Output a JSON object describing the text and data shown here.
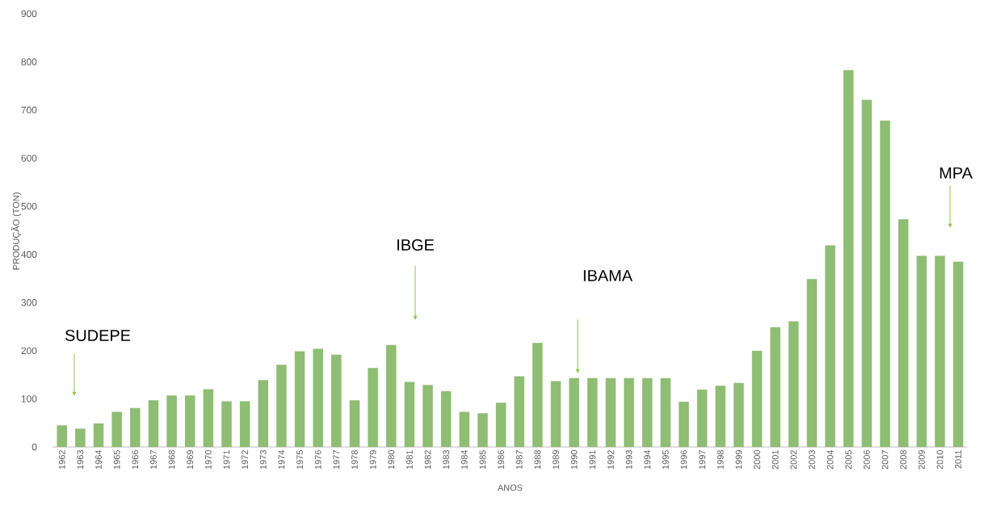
{
  "chart_data": {
    "type": "bar",
    "xlabel": "ANOS",
    "ylabel": "PRODUÇÃO (TON)",
    "color": "#8ebd73",
    "categories": [
      "1962",
      "1963",
      "1964",
      "1965",
      "1966",
      "1967",
      "1968",
      "1969",
      "1970",
      "1971",
      "1972",
      "1973",
      "1974",
      "1975",
      "1976",
      "1977",
      "1978",
      "1979",
      "1980",
      "1981",
      "1982",
      "1983",
      "1984",
      "1985",
      "1986",
      "1987",
      "1988",
      "1989",
      "1990",
      "1991",
      "1992",
      "1993",
      "1994",
      "1995",
      "1996",
      "1997",
      "1998",
      "1999",
      "2000",
      "2001",
      "2002",
      "2003",
      "2004",
      "2005",
      "2006",
      "2007",
      "2008",
      "2009",
      "2010",
      "2011"
    ],
    "values": [
      45,
      38,
      49,
      73,
      81,
      97,
      107,
      107,
      120,
      95,
      95,
      139,
      171,
      199,
      204,
      192,
      97,
      164,
      212,
      135,
      129,
      116,
      73,
      70,
      92,
      147,
      216,
      137,
      143,
      143,
      143,
      143,
      143,
      143,
      94,
      119,
      127,
      133,
      200,
      249,
      261,
      349,
      419,
      783,
      721,
      678,
      473,
      397,
      397,
      385
    ],
    "ylim": [
      0,
      900
    ],
    "yticks": [
      0,
      100,
      200,
      300,
      400,
      500,
      600,
      700,
      800,
      900
    ],
    "annotations": [
      "SUDEPE",
      "IBGE",
      "IBAMA",
      "MPA"
    ]
  }
}
